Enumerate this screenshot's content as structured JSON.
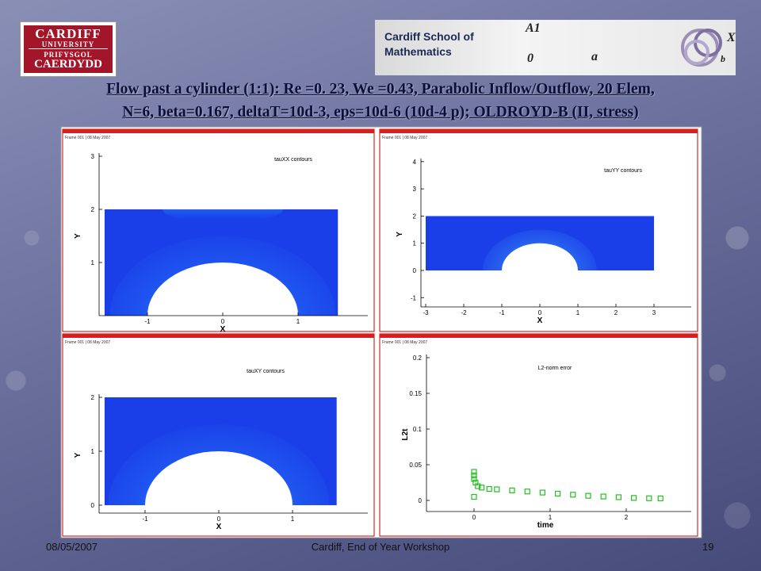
{
  "logo_left": {
    "lines": [
      "CARDIFF",
      "UNIVERSITY",
      "PRIFYSGOL",
      "CAERDYDD"
    ]
  },
  "logo_right": {
    "lines": [
      "Cardiff School of",
      "Mathematics"
    ],
    "symbols": [
      "A1",
      "a",
      "0",
      "X",
      "b"
    ]
  },
  "title": {
    "lines": [
      "Flow past a cylinder (1:1): Re =0. 23, We =0.43, Parabolic Inflow/Outflow, 20 Elem,",
      "N=6, beta=0.167, deltaT=10d-3, eps=10d-6 (10d-4 p); OLDROYD-B (II, stress)"
    ]
  },
  "panels": [
    {
      "frame_label": "Frame 001 | 08 May 2007",
      "label": "tauXX contours",
      "x_label": "X",
      "y_label": "Y",
      "x_ticks": [
        -1,
        0,
        1
      ],
      "y_ticks": [
        1,
        2,
        3
      ]
    },
    {
      "frame_label": "Frame 001 | 08 May 2007",
      "label": "tauYY contours",
      "x_label": "X",
      "y_label": "Y",
      "x_ticks": [
        -3,
        -2,
        -1,
        0,
        1,
        2,
        3
      ],
      "y_ticks": [
        -1,
        0,
        1,
        2,
        3,
        4
      ]
    },
    {
      "frame_label": "Frame 001 | 08 May 2007",
      "label": "tauXY contours",
      "x_label": "X",
      "y_label": "Y",
      "x_ticks": [
        -1,
        0,
        1
      ],
      "y_ticks": [
        0,
        1,
        2
      ]
    },
    {
      "frame_label": "Frame 001 | 08 May 2007",
      "label": "L2-norm error",
      "x_label": "time",
      "y_label": "L2t",
      "x_ticks": [
        0,
        1,
        2
      ],
      "y_ticks": [
        0,
        0.05,
        0.1,
        0.15,
        0.2
      ],
      "points": [
        [
          0,
          0.005
        ],
        [
          0,
          0.03
        ],
        [
          0,
          0.035
        ],
        [
          0,
          0.04
        ],
        [
          0.02,
          0.025
        ],
        [
          0.05,
          0.02
        ],
        [
          0.1,
          0.018
        ],
        [
          0.2,
          0.016
        ],
        [
          0.3,
          0.0155
        ],
        [
          0.5,
          0.014
        ],
        [
          0.7,
          0.0125
        ],
        [
          0.9,
          0.011
        ],
        [
          1.1,
          0.0095
        ],
        [
          1.3,
          0.008
        ],
        [
          1.5,
          0.0065
        ],
        [
          1.7,
          0.0055
        ],
        [
          1.9,
          0.0045
        ],
        [
          2.1,
          0.0035
        ],
        [
          2.3,
          0.003
        ],
        [
          2.45,
          0.0028
        ]
      ]
    }
  ],
  "footer": {
    "date": "08/05/2007",
    "event": "Cardiff,  End of Year Workshop",
    "page": "19"
  }
}
